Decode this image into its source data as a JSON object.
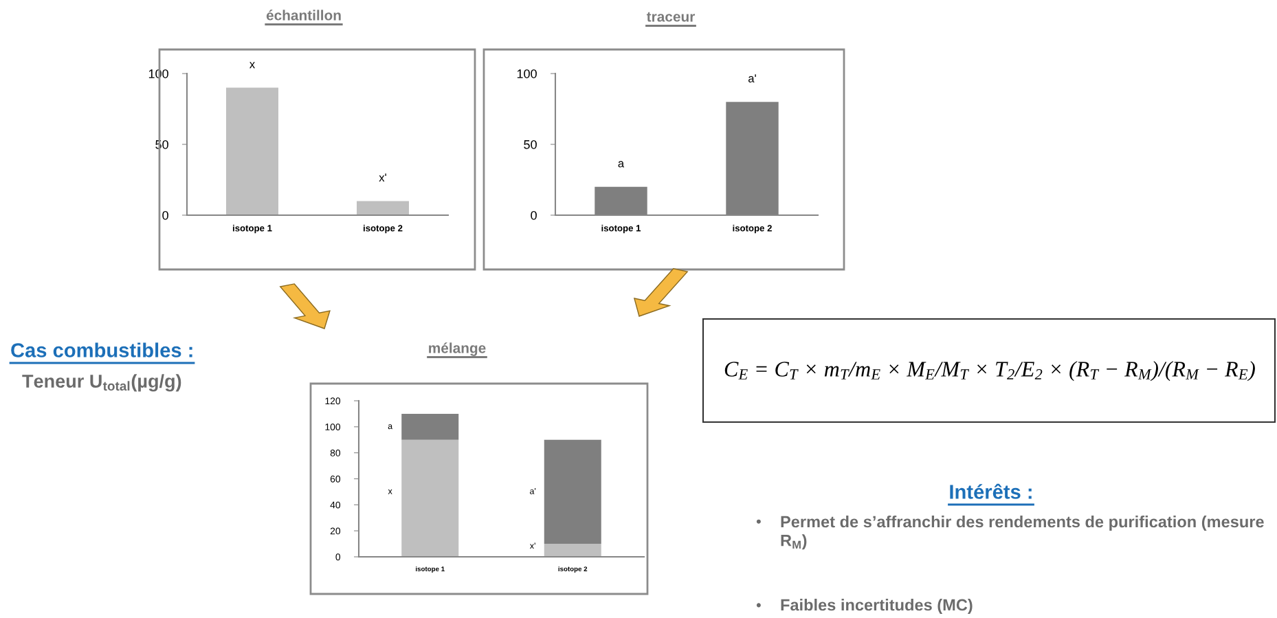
{
  "chart_data": [
    {
      "type": "bar",
      "title": "échantillon",
      "categories": [
        "isotope 1",
        "isotope 2"
      ],
      "series": [
        {
          "color": "#bfbfbf",
          "values": [
            90,
            10
          ]
        }
      ],
      "ylim": [
        0,
        100
      ],
      "yticks": [
        0,
        50,
        100
      ],
      "annotations": [
        {
          "text": "x",
          "x": "isotope 1",
          "y": 90
        },
        {
          "text": "x'",
          "x": "isotope 2",
          "y": 10
        }
      ]
    },
    {
      "type": "bar",
      "title": "traceur",
      "categories": [
        "isotope 1",
        "isotope 2"
      ],
      "series": [
        {
          "color": "#7f7f7f",
          "values": [
            20,
            80
          ]
        }
      ],
      "ylim": [
        0,
        100
      ],
      "yticks": [
        0,
        50,
        100
      ],
      "annotations": [
        {
          "text": "a",
          "x": "isotope 1",
          "y": 20
        },
        {
          "text": "a'",
          "x": "isotope 2",
          "y": 80
        }
      ]
    },
    {
      "type": "bar",
      "title": "mélange",
      "categories": [
        "isotope 1",
        "isotope 2"
      ],
      "stacked": true,
      "series": [
        {
          "color": "#bfbfbf",
          "values": [
            90,
            10
          ]
        },
        {
          "color": "#7f7f7f",
          "values": [
            20,
            80
          ]
        }
      ],
      "ylim": [
        0,
        120
      ],
      "yticks": [
        0,
        20,
        40,
        60,
        80,
        100,
        120
      ],
      "annotations": [
        "a",
        "x",
        "a'",
        "x'"
      ]
    },
    {
      "type": "other",
      "annotations": [
        "Cas combustibles :",
        "Teneur U$_{total}$(µg/g)",
        "C$_{E}$ = C$_{T}$ × m$_{T}$/m$_{E}$ × M$_{E}$/M$_{T}$ × T$_{2}$/E$_{2}$ × (R$_{T}$ − R$_{M}$)/(R$_{M}$ − R$_{E}$)",
        "Intérêts :",
        "•",
        "Permet de s’affranchir des rendements de purification (mesure R$_{M}$)",
        "•",
        "Faibles incertitudes (MC)"
      ]
    }
  ]
}
